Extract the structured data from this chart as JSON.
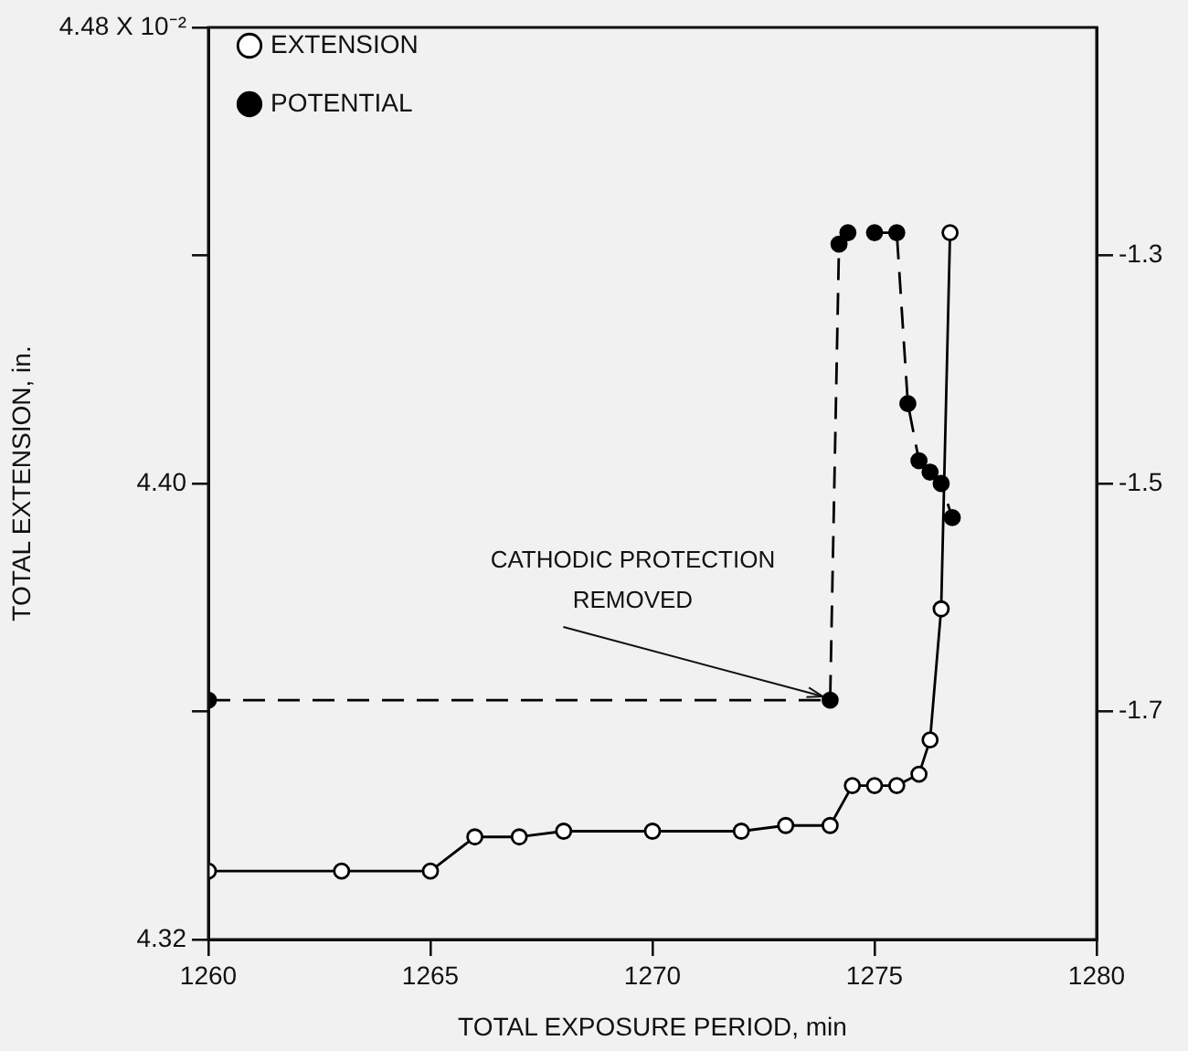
{
  "chart_data": {
    "type": "line",
    "xlabel": "TOTAL EXPOSURE PERIOD, min",
    "ylabel": "TOTAL EXTENSION, in.",
    "xlim": [
      1260,
      1280
    ],
    "xticks": [
      1260,
      1265,
      1270,
      1275,
      1280
    ],
    "ylim": [
      4.32,
      4.48
    ],
    "yticks": [
      4.32,
      {
        "value": 4.36,
        "label": null
      },
      {
        "value": 4.4,
        "label": "4.40"
      },
      {
        "value": 4.44,
        "label": null
      },
      {
        "value": 4.48,
        "label": "4.48 X 10⁻²"
      }
    ],
    "y2lim": [
      -1.9,
      -1.1
    ],
    "y2ticks": [
      -1.3,
      -1.5,
      -1.7
    ],
    "grid": false,
    "legend": "top left",
    "marker": "circle",
    "series": [
      {
        "name": "EXTENSION",
        "color": "#000000",
        "line_style": "solid",
        "x": [
          1260,
          1263,
          1265,
          1266,
          1267,
          1268,
          1270,
          1272,
          1273,
          1274,
          1274.5,
          1275,
          1275.5,
          1276,
          1276.25,
          1276.5,
          1276.7
        ],
        "values": [
          4.332,
          4.332,
          4.332,
          4.338,
          4.338,
          4.339,
          4.339,
          4.339,
          4.34,
          4.34,
          4.347,
          4.347,
          4.347,
          4.349,
          4.355,
          4.378,
          4.444
        ]
      },
      {
        "name": "POTENTIAL",
        "color": "#000000",
        "line_style": "dashed",
        "axis": "y2",
        "x": [
          1260,
          1274,
          1274.2,
          1274.4,
          1275,
          1275.5,
          1275.75,
          1276,
          1276.25,
          1276.5,
          1276.75
        ],
        "values": [
          -1.69,
          -1.69,
          -1.29,
          -1.28,
          -1.28,
          -1.28,
          -1.43,
          -1.48,
          -1.49,
          -1.5,
          -1.53
        ]
      }
    ],
    "annotations": [
      {
        "text": "CATHODIC PROTECTION\nREMOVED",
        "x": 1274,
        "y": 4.362
      }
    ]
  }
}
